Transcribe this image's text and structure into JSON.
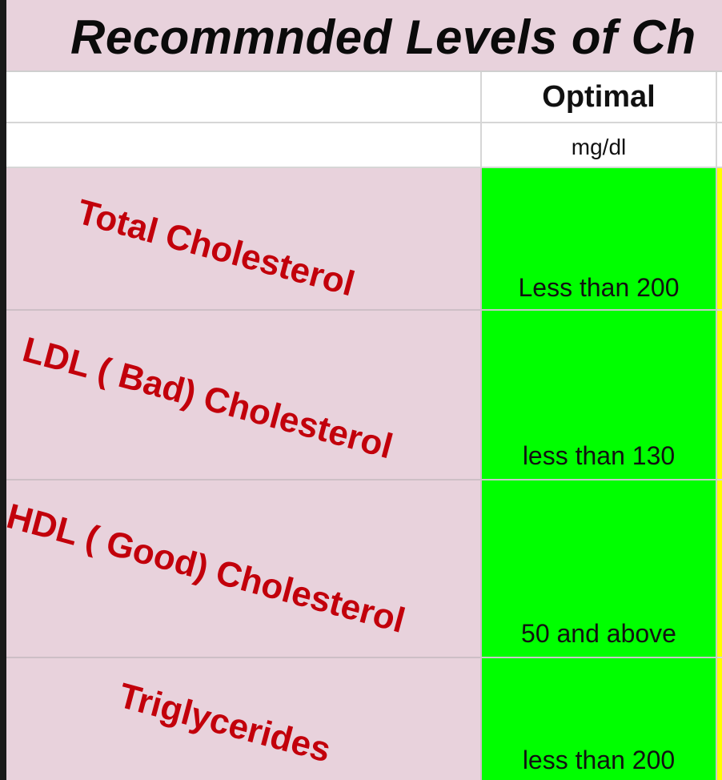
{
  "title": "Recommnded Levels of Ch",
  "header": {
    "column_label": "Optimal",
    "unit": "mg/dl"
  },
  "rows": [
    {
      "name": "Total Cholesterol",
      "optimal": "Less than 200"
    },
    {
      "name": "LDL ( Bad) Cholesterol",
      "optimal": "less than 130"
    },
    {
      "name": "HDL ( Good) Cholesterol",
      "optimal": "50 and above"
    },
    {
      "name": "Triglycerides",
      "optimal": "less than 200"
    }
  ],
  "colors": {
    "label_background": "#e8d2dc",
    "optimal_fill": "#00ff00",
    "next_column_fill": "#ffff00",
    "label_text": "#c2000b"
  }
}
